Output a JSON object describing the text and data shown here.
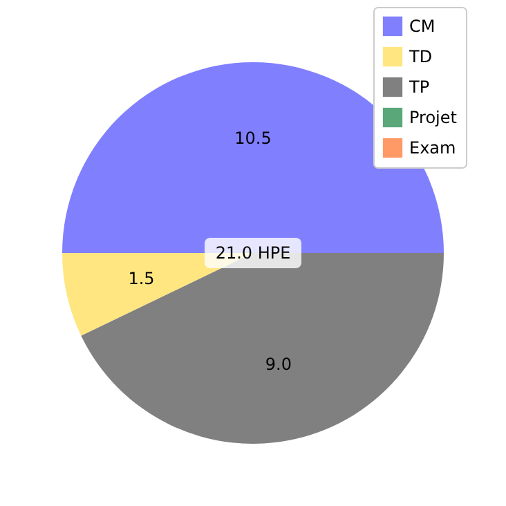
{
  "chart_data": {
    "type": "pie",
    "categories": [
      "CM",
      "TD",
      "TP",
      "Projet",
      "Exam"
    ],
    "values": [
      10.5,
      1.5,
      9.0,
      0,
      0
    ],
    "colors": [
      "#8080ff",
      "#ffe680",
      "#808080",
      "#5aa87a",
      "#ff9966"
    ],
    "value_labels": [
      "10.5",
      "1.5",
      "9.0",
      null,
      null
    ],
    "annotations": [
      "21.0 HPE"
    ],
    "legend": "top right"
  }
}
